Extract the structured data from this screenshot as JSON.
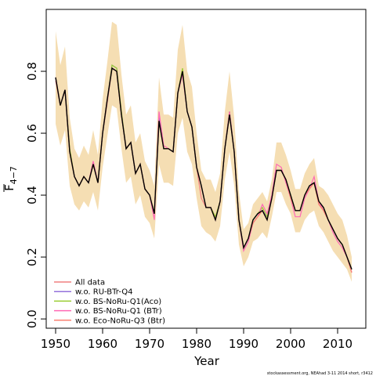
{
  "chart_data": {
    "type": "line",
    "xlabel": "Year",
    "ylabel": "F̄4−7",
    "ylabel_main": "F",
    "ylabel_sub": "4−7",
    "xlim": [
      1948,
      2016
    ],
    "ylim": [
      -0.03,
      1.0
    ],
    "xticks": [
      1950,
      1960,
      1970,
      1980,
      1990,
      2000,
      2010
    ],
    "yticks": [
      0.0,
      0.2,
      0.4,
      0.6,
      0.8
    ],
    "ytick_labels": [
      "0.0",
      "0.2",
      "0.4",
      "0.6",
      "0.8"
    ],
    "grid": false,
    "legend_position": "bottom-left",
    "band_color": "#f5deb3",
    "footer": "stockassessment.org, NEAhad  3-11  2014  short,  r3412",
    "x": [
      1950,
      1951,
      1952,
      1953,
      1954,
      1955,
      1956,
      1957,
      1958,
      1959,
      1960,
      1961,
      1962,
      1963,
      1964,
      1965,
      1966,
      1967,
      1968,
      1969,
      1970,
      1971,
      1972,
      1973,
      1974,
      1975,
      1976,
      1977,
      1978,
      1979,
      1980,
      1981,
      1982,
      1983,
      1984,
      1985,
      1986,
      1987,
      1988,
      1989,
      1990,
      1991,
      1992,
      1993,
      1994,
      1995,
      1996,
      1997,
      1998,
      1999,
      2000,
      2001,
      2002,
      2003,
      2004,
      2005,
      2006,
      2007,
      2008,
      2009,
      2010,
      2011,
      2012,
      2013
    ],
    "band_upper": [
      0.93,
      0.82,
      0.88,
      0.65,
      0.55,
      0.52,
      0.56,
      0.53,
      0.61,
      0.53,
      0.71,
      0.83,
      0.96,
      0.95,
      0.79,
      0.66,
      0.69,
      0.57,
      0.6,
      0.51,
      0.48,
      0.43,
      0.78,
      0.66,
      0.66,
      0.65,
      0.87,
      0.95,
      0.8,
      0.75,
      0.6,
      0.48,
      0.45,
      0.45,
      0.41,
      0.47,
      0.67,
      0.8,
      0.65,
      0.41,
      0.29,
      0.31,
      0.37,
      0.39,
      0.41,
      0.38,
      0.45,
      0.57,
      0.57,
      0.53,
      0.48,
      0.42,
      0.42,
      0.47,
      0.5,
      0.52,
      0.43,
      0.42,
      0.4,
      0.37,
      0.34,
      0.32,
      0.27,
      0.2
    ],
    "band_lower": [
      0.63,
      0.56,
      0.61,
      0.43,
      0.37,
      0.35,
      0.38,
      0.36,
      0.41,
      0.35,
      0.49,
      0.59,
      0.69,
      0.68,
      0.55,
      0.44,
      0.46,
      0.37,
      0.4,
      0.33,
      0.31,
      0.26,
      0.5,
      0.44,
      0.44,
      0.43,
      0.6,
      0.65,
      0.54,
      0.5,
      0.39,
      0.3,
      0.28,
      0.27,
      0.25,
      0.3,
      0.45,
      0.54,
      0.43,
      0.24,
      0.17,
      0.2,
      0.25,
      0.26,
      0.28,
      0.26,
      0.33,
      0.41,
      0.41,
      0.37,
      0.34,
      0.28,
      0.28,
      0.32,
      0.34,
      0.35,
      0.3,
      0.28,
      0.25,
      0.22,
      0.2,
      0.18,
      0.16,
      0.12
    ],
    "series": [
      {
        "name": "All data",
        "color": "#f08080",
        "y": [
          0.77,
          0.69,
          0.74,
          0.54,
          0.46,
          0.43,
          0.46,
          0.44,
          0.5,
          0.44,
          0.6,
          0.7,
          0.81,
          0.8,
          0.66,
          0.55,
          0.57,
          0.47,
          0.5,
          0.42,
          0.4,
          0.34,
          0.64,
          0.55,
          0.55,
          0.54,
          0.73,
          0.8,
          0.67,
          0.62,
          0.49,
          0.39,
          0.36,
          0.36,
          0.32,
          0.38,
          0.55,
          0.66,
          0.54,
          0.32,
          0.23,
          0.26,
          0.31,
          0.33,
          0.35,
          0.32,
          0.39,
          0.48,
          0.48,
          0.45,
          0.39,
          0.35,
          0.35,
          0.4,
          0.42,
          0.44,
          0.37,
          0.35,
          0.32,
          0.29,
          0.26,
          0.24,
          0.2,
          0.15
        ]
      },
      {
        "name": "w.o. RU-BTr-Q4",
        "color": "#9370db",
        "y": [
          0.78,
          0.69,
          0.74,
          0.54,
          0.46,
          0.43,
          0.46,
          0.44,
          0.5,
          0.44,
          0.6,
          0.71,
          0.82,
          0.81,
          0.66,
          0.55,
          0.57,
          0.47,
          0.5,
          0.42,
          0.4,
          0.34,
          0.65,
          0.55,
          0.55,
          0.54,
          0.73,
          0.8,
          0.67,
          0.62,
          0.49,
          0.43,
          0.36,
          0.36,
          0.32,
          0.38,
          0.55,
          0.67,
          0.54,
          0.32,
          0.23,
          0.26,
          0.32,
          0.34,
          0.35,
          0.33,
          0.39,
          0.48,
          0.48,
          0.45,
          0.4,
          0.35,
          0.35,
          0.4,
          0.43,
          0.44,
          0.38,
          0.36,
          0.32,
          0.29,
          0.26,
          0.24,
          0.2,
          0.16
        ]
      },
      {
        "name": "w.o. BS-NoRu-Q1(Aco)",
        "color": "#9acd32",
        "y": [
          0.78,
          0.69,
          0.74,
          0.55,
          0.46,
          0.43,
          0.46,
          0.44,
          0.5,
          0.44,
          0.6,
          0.71,
          0.82,
          0.81,
          0.67,
          0.55,
          0.57,
          0.47,
          0.5,
          0.42,
          0.4,
          0.34,
          0.64,
          0.55,
          0.55,
          0.54,
          0.73,
          0.81,
          0.67,
          0.62,
          0.49,
          0.43,
          0.36,
          0.36,
          0.33,
          0.38,
          0.55,
          0.67,
          0.54,
          0.32,
          0.23,
          0.26,
          0.32,
          0.34,
          0.36,
          0.33,
          0.39,
          0.48,
          0.48,
          0.45,
          0.4,
          0.35,
          0.35,
          0.4,
          0.43,
          0.44,
          0.38,
          0.36,
          0.32,
          0.29,
          0.26,
          0.24,
          0.2,
          0.16
        ]
      },
      {
        "name": "w.o. BS-NoRu-Q1 (BTr)",
        "color": "#ff69b4",
        "y": [
          0.78,
          0.69,
          0.74,
          0.54,
          0.46,
          0.43,
          0.46,
          0.44,
          0.51,
          0.44,
          0.6,
          0.71,
          0.81,
          0.8,
          0.66,
          0.55,
          0.57,
          0.47,
          0.5,
          0.42,
          0.4,
          0.32,
          0.67,
          0.56,
          0.55,
          0.54,
          0.73,
          0.79,
          0.67,
          0.62,
          0.49,
          0.43,
          0.36,
          0.36,
          0.32,
          0.38,
          0.55,
          0.67,
          0.54,
          0.32,
          0.22,
          0.25,
          0.31,
          0.33,
          0.37,
          0.34,
          0.4,
          0.5,
          0.49,
          0.44,
          0.39,
          0.33,
          0.33,
          0.39,
          0.42,
          0.46,
          0.38,
          0.35,
          0.32,
          0.28,
          0.25,
          0.23,
          0.2,
          0.15
        ]
      },
      {
        "name": "w.o. Eco-NoRu-Q3 (Btr)",
        "color": "#fa8072",
        "y": [
          0.78,
          0.69,
          0.74,
          0.54,
          0.46,
          0.43,
          0.46,
          0.44,
          0.5,
          0.44,
          0.6,
          0.71,
          0.81,
          0.8,
          0.66,
          0.55,
          0.57,
          0.47,
          0.5,
          0.42,
          0.4,
          0.34,
          0.64,
          0.55,
          0.55,
          0.54,
          0.73,
          0.8,
          0.67,
          0.62,
          0.49,
          0.43,
          0.36,
          0.36,
          0.32,
          0.38,
          0.55,
          0.66,
          0.54,
          0.32,
          0.23,
          0.26,
          0.31,
          0.33,
          0.35,
          0.32,
          0.39,
          0.48,
          0.48,
          0.45,
          0.39,
          0.35,
          0.35,
          0.4,
          0.42,
          0.44,
          0.37,
          0.35,
          0.32,
          0.29,
          0.26,
          0.24,
          0.2,
          0.15
        ]
      }
    ],
    "reference_line_color": "#000000",
    "reference_line": [
      0.78,
      0.69,
      0.74,
      0.54,
      0.46,
      0.43,
      0.46,
      0.44,
      0.5,
      0.44,
      0.6,
      0.71,
      0.81,
      0.8,
      0.66,
      0.55,
      0.57,
      0.47,
      0.5,
      0.42,
      0.4,
      0.34,
      0.64,
      0.55,
      0.55,
      0.54,
      0.73,
      0.8,
      0.67,
      0.62,
      0.49,
      0.43,
      0.36,
      0.36,
      0.32,
      0.38,
      0.55,
      0.66,
      0.54,
      0.32,
      0.23,
      0.26,
      0.32,
      0.34,
      0.35,
      0.32,
      0.39,
      0.48,
      0.48,
      0.45,
      0.4,
      0.35,
      0.35,
      0.4,
      0.43,
      0.44,
      0.38,
      0.36,
      0.32,
      0.29,
      0.26,
      0.24,
      0.2,
      0.16
    ]
  }
}
